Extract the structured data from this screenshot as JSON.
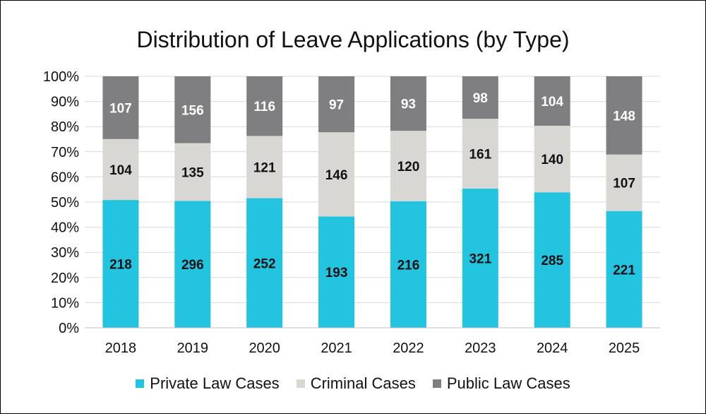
{
  "chart_data": {
    "type": "bar",
    "stacked": true,
    "normalized": true,
    "title": "Distribution of Leave Applications (by Type)",
    "categories": [
      "2018",
      "2019",
      "2020",
      "2021",
      "2022",
      "2023",
      "2024",
      "2025"
    ],
    "series": [
      {
        "name": "Private Law Cases",
        "color": "#22C4E0",
        "values": [
          218,
          296,
          252,
          193,
          216,
          321,
          285,
          221
        ]
      },
      {
        "name": "Criminal Cases",
        "color": "#D8D7D3",
        "values": [
          104,
          135,
          121,
          146,
          120,
          161,
          140,
          107
        ]
      },
      {
        "name": "Public Law Cases",
        "color": "#7F7F81",
        "values": [
          107,
          156,
          116,
          97,
          93,
          98,
          104,
          148
        ]
      }
    ],
    "y_ticks": [
      "0%",
      "10%",
      "20%",
      "30%",
      "40%",
      "50%",
      "60%",
      "70%",
      "80%",
      "90%",
      "100%"
    ],
    "ylim": [
      0,
      100
    ],
    "grid": true,
    "legend_position": "bottom",
    "label_colors": {
      "Private Law Cases": "#111111",
      "Criminal Cases": "#111111",
      "Public Law Cases": "#ffffff"
    }
  }
}
